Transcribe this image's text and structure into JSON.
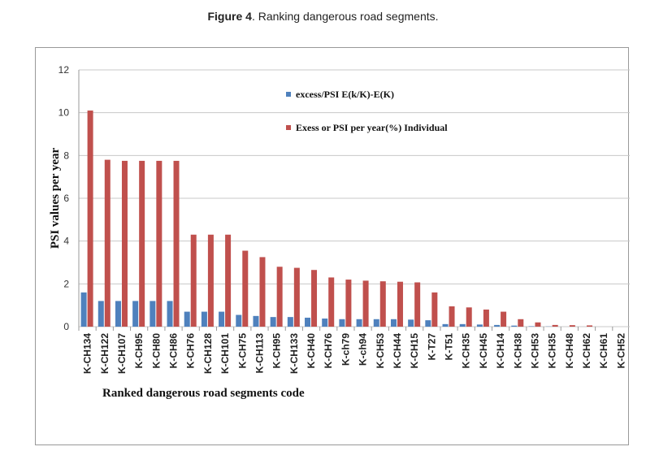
{
  "figure": {
    "label": "Figure 4",
    "caption": ". Ranking dangerous road segments."
  },
  "chart_data": {
    "type": "bar",
    "title": "",
    "xlabel": "Ranked dangerous road segments code",
    "ylabel": "PSI values per year",
    "ylim": [
      0,
      12
    ],
    "yticks": [
      0,
      2,
      4,
      6,
      8,
      10,
      12
    ],
    "grid": true,
    "legend_position": "top-center",
    "categories": [
      "K-CH134",
      "K-CH122",
      "K-CH107",
      "K-CH95",
      "K-CH80",
      "K-CH86",
      "K-CH76",
      "K-CH128",
      "K-CH101",
      "K-CH75",
      "K-CH113",
      "K-CH95",
      "K-CH133",
      "K-CH40",
      "K-CH76",
      "K-ch79",
      "K-ch94",
      "K-CH53",
      "K-CH44",
      "K-CH15",
      "K-T27",
      "K-T51",
      "K-CH35",
      "K-CH45",
      "K-CH14",
      "K-CH38",
      "K-CH53",
      "K-CH35",
      "K-CH48",
      "K-CH62",
      "K-CH61",
      "K-CH52"
    ],
    "series": [
      {
        "name": "excess/PSI E(k/K)-E(K)",
        "color": "#4f81bd",
        "values": [
          1.6,
          1.2,
          1.2,
          1.2,
          1.2,
          1.2,
          0.7,
          0.7,
          0.7,
          0.55,
          0.5,
          0.45,
          0.45,
          0.42,
          0.38,
          0.35,
          0.35,
          0.35,
          0.35,
          0.33,
          0.3,
          0.12,
          0.12,
          0.1,
          0.08,
          0.05,
          0.02,
          0.01,
          0,
          0,
          0,
          0
        ]
      },
      {
        "name": "Exess or PSI per year(%) Individual",
        "color": "#c0504d",
        "values": [
          10.1,
          7.8,
          7.75,
          7.75,
          7.75,
          7.75,
          4.3,
          4.3,
          4.3,
          3.55,
          3.25,
          2.8,
          2.75,
          2.65,
          2.3,
          2.2,
          2.15,
          2.12,
          2.1,
          2.07,
          1.6,
          0.95,
          0.9,
          0.8,
          0.7,
          0.35,
          0.2,
          0.08,
          0.07,
          0.06,
          0,
          0
        ]
      }
    ]
  }
}
